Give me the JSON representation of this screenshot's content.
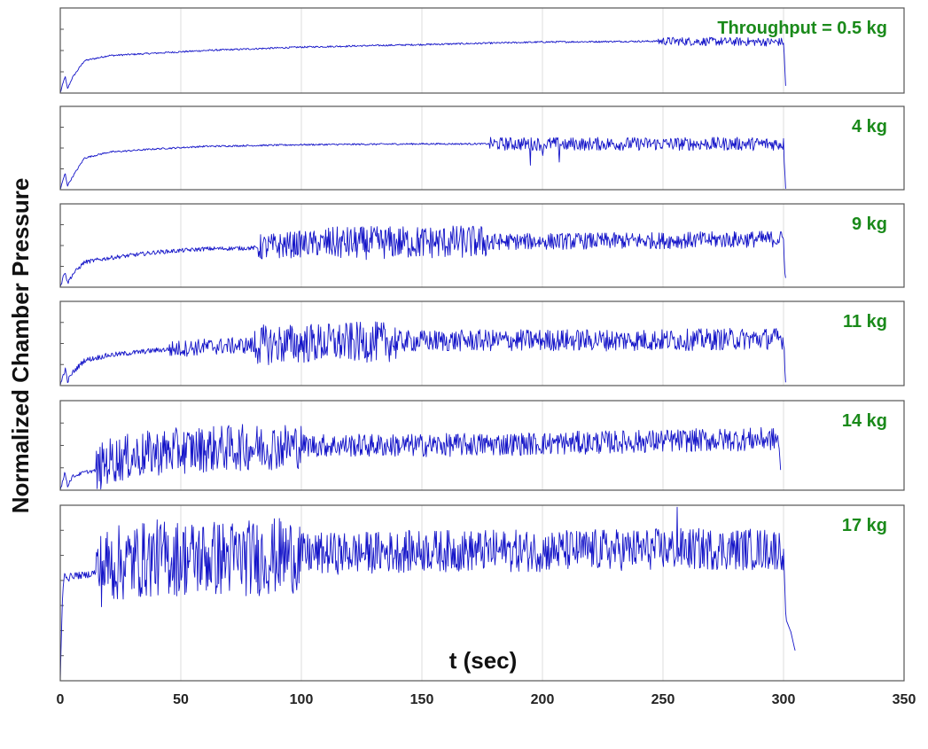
{
  "chart_data": {
    "type": "line",
    "title": "",
    "xlabel": "t (sec)",
    "ylabel": "Normalized Chamber Pressure",
    "xlim": [
      0,
      350
    ],
    "xticks": [
      0,
      50,
      100,
      150,
      200,
      250,
      300,
      350
    ],
    "grid": true,
    "legend": "none",
    "line_color": "#1414c8",
    "label_color": "#1a8a1a",
    "panels": [
      {
        "label": "Throughput = 0.5 kg",
        "series": [
          {
            "x": [
              0,
              2,
              3,
              5,
              10,
              20,
              40,
              60,
              80,
              100,
              150,
              200,
              250,
              300,
              301
            ],
            "y": [
              0.0,
              0.2,
              0.05,
              0.18,
              0.38,
              0.44,
              0.47,
              0.5,
              0.52,
              0.54,
              0.57,
              0.6,
              0.61,
              0.6,
              0.02
            ]
          }
        ],
        "noise": [
          [
            0,
            248,
            0.01
          ],
          [
            248,
            301,
            0.05
          ]
        ]
      },
      {
        "label": "4 kg",
        "series": [
          {
            "x": [
              0,
              2,
              3,
              5,
              10,
              20,
              40,
              60,
              80,
              100,
              150,
              178,
              200,
              250,
              300,
              301
            ],
            "y": [
              0.0,
              0.2,
              0.05,
              0.15,
              0.38,
              0.45,
              0.49,
              0.52,
              0.53,
              0.54,
              0.55,
              0.55,
              0.55,
              0.55,
              0.55,
              0.02
            ]
          }
        ],
        "noise": [
          [
            0,
            178,
            0.01
          ],
          [
            178,
            301,
            0.08
          ]
        ],
        "dips": [
          [
            195,
            -0.22
          ],
          [
            200,
            -0.2
          ],
          [
            210,
            -0.14
          ],
          [
            218,
            -0.12
          ],
          [
            207,
            -0.18
          ]
        ]
      },
      {
        "label": "9 kg",
        "series": [
          {
            "x": [
              0,
              2,
              3,
              5,
              10,
              20,
              40,
              60,
              80,
              100,
              150,
              200,
              250,
              300,
              301
            ],
            "y": [
              0.0,
              0.2,
              0.05,
              0.15,
              0.3,
              0.35,
              0.42,
              0.46,
              0.47,
              0.52,
              0.54,
              0.55,
              0.56,
              0.58,
              0.02
            ]
          }
        ],
        "noise": [
          [
            0,
            82,
            0.025
          ],
          [
            82,
            110,
            0.16
          ],
          [
            110,
            180,
            0.2
          ],
          [
            180,
            301,
            0.1
          ]
        ]
      },
      {
        "label": "11 kg",
        "series": [
          {
            "x": [
              0,
              2,
              3,
              5,
              10,
              20,
              40,
              60,
              80,
              100,
              150,
              200,
              250,
              300,
              301
            ],
            "y": [
              0.0,
              0.2,
              0.05,
              0.15,
              0.3,
              0.36,
              0.42,
              0.46,
              0.48,
              0.5,
              0.53,
              0.54,
              0.54,
              0.56,
              0.02
            ]
          }
        ],
        "noise": [
          [
            0,
            45,
            0.03
          ],
          [
            45,
            80,
            0.1
          ],
          [
            80,
            140,
            0.24
          ],
          [
            140,
            301,
            0.13
          ]
        ]
      },
      {
        "label": "14 kg",
        "series": [
          {
            "x": [
              0,
              2,
              3,
              5,
              10,
              15,
              20,
              40,
              60,
              80,
              100,
              150,
              200,
              250,
              290,
              298,
              299
            ],
            "y": [
              0.0,
              0.2,
              0.05,
              0.15,
              0.2,
              0.22,
              0.33,
              0.42,
              0.46,
              0.48,
              0.5,
              0.5,
              0.52,
              0.55,
              0.57,
              0.57,
              0.02
            ]
          }
        ],
        "noise": [
          [
            0,
            15,
            0.02
          ],
          [
            15,
            100,
            0.26
          ],
          [
            100,
            299,
            0.13
          ]
        ]
      },
      {
        "label": "17 kg",
        "series": [
          {
            "x": [
              0,
              1,
              2,
              3,
              5,
              10,
              15,
              20,
              40,
              60,
              80,
              100,
              150,
              200,
              250,
              300,
              301,
              303,
              305
            ],
            "y": [
              0.0,
              0.52,
              0.62,
              0.58,
              0.6,
              0.6,
              0.62,
              0.66,
              0.7,
              0.7,
              0.7,
              0.72,
              0.74,
              0.74,
              0.75,
              0.75,
              0.35,
              0.28,
              0.16
            ]
          }
        ],
        "noise": [
          [
            0,
            15,
            0.02
          ],
          [
            15,
            100,
            0.22
          ],
          [
            100,
            300,
            0.12
          ]
        ],
        "spikes": [
          [
            256,
            0.17
          ],
          [
            152,
            0.12
          ],
          [
            185,
            0.1
          ]
        ]
      }
    ]
  }
}
